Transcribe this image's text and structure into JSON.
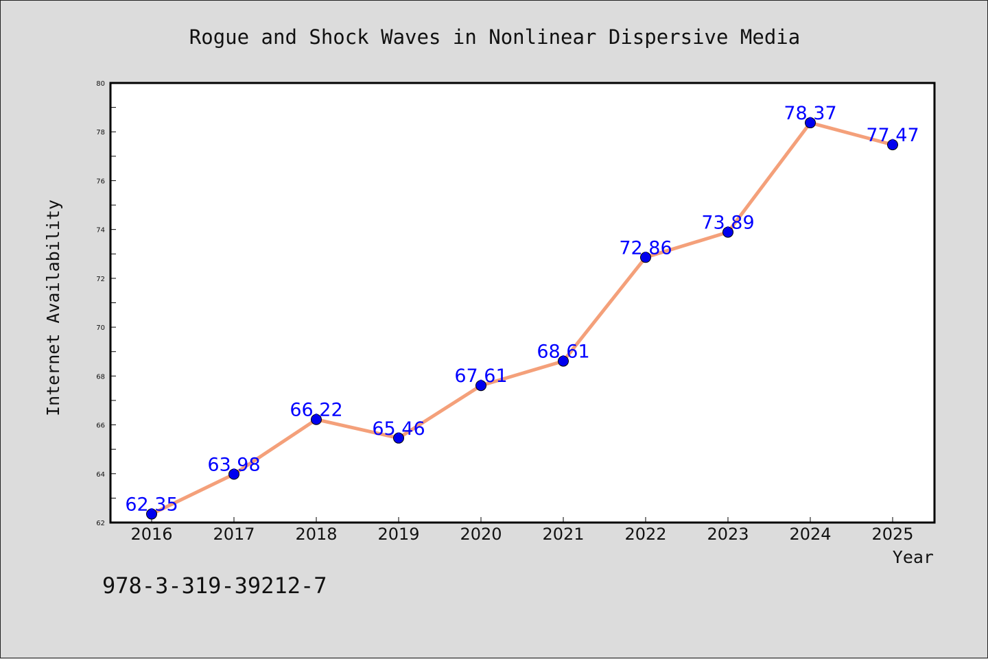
{
  "chart_data": {
    "type": "line",
    "title": "Rogue and Shock Waves in Nonlinear Dispersive Media",
    "xlabel": "Year",
    "ylabel": "Internet Availability",
    "categories": [
      "2016",
      "2017",
      "2018",
      "2019",
      "2020",
      "2021",
      "2022",
      "2023",
      "2024",
      "2025"
    ],
    "series": [
      {
        "values": [
          62.35,
          63.98,
          66.22,
          65.46,
          67.61,
          68.61,
          72.86,
          73.89,
          78.37,
          77.47
        ],
        "labels": [
          "62.35",
          "63.98",
          "66.22",
          "65.46",
          "67.61",
          "68.61",
          "72.86",
          "73.89",
          "78.37",
          "77.47"
        ]
      }
    ],
    "ylim": [
      62,
      80
    ],
    "yticks": [
      62,
      64,
      66,
      68,
      70,
      72,
      74,
      76,
      78,
      80
    ],
    "grid": false,
    "legend": "none",
    "line_color": "#f4a07a",
    "marker_color": "#0000ee",
    "label_color": "#0000ff"
  },
  "footer_text": "978-3-319-39212-7"
}
